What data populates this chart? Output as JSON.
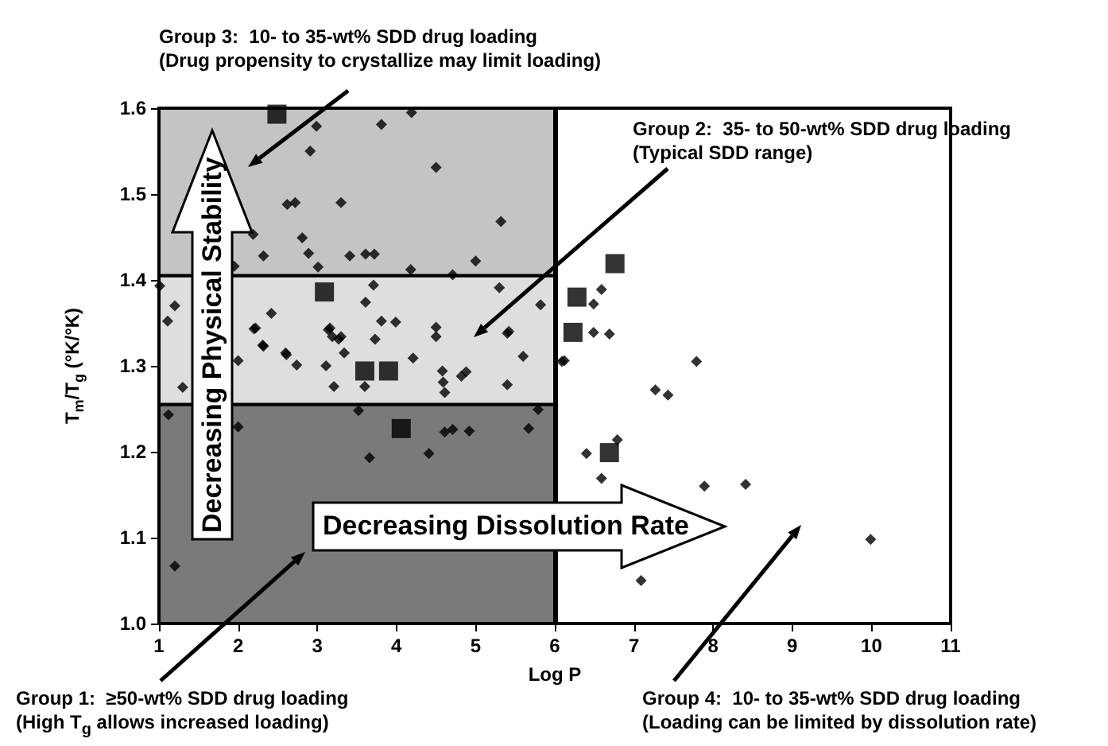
{
  "chart_data": {
    "type": "scatter",
    "xlabel": "Log P",
    "ylabel": "T$_{m}$/T$_{g}$ (°K/°K)",
    "xlim": [
      1,
      11
    ],
    "xticks": [
      1,
      2,
      3,
      4,
      5,
      6,
      7,
      8,
      9,
      10,
      11
    ],
    "ylim": [
      1.0,
      1.6
    ],
    "yticks": [
      {
        "value": 1.0,
        "label": "1.0"
      },
      1.1,
      1.2,
      1.3,
      1.4,
      1.5,
      1.6
    ],
    "grid": false,
    "series": [
      {
        "color": "#000000",
        "marker": "diamond",
        "x": [
          2.99,
          2.91,
          3.81,
          4.19,
          4.5,
          2.62,
          2.72,
          3.3,
          2.19,
          2.81,
          2.32,
          2.89,
          3.01,
          3.41,
          3.61,
          3.72,
          5.32,
          5.0,
          4.18,
          1.95,
          4.71,
          1.2,
          1.11,
          1.01,
          2.42,
          2.22,
          2.32,
          2.6,
          3.16,
          3.19,
          3.3,
          3.71,
          3.61,
          3.81,
          3.99,
          4.5,
          4.5,
          5.3,
          5.42,
          5.82,
          6.12,
          2.0,
          2.2,
          2.31,
          2.61,
          2.74,
          3.11,
          3.14,
          3.27,
          3.34,
          3.21,
          3.73,
          3.6,
          4.21,
          4.58,
          4.59,
          4.61,
          4.88,
          4.82,
          5.4,
          5.4,
          5.6,
          1.3,
          1.12,
          2.0,
          3.52,
          3.66,
          4.41,
          4.61,
          4.71,
          4.92,
          5.67,
          5.79,
          1.2,
          6.59,
          6.49,
          6.49,
          6.69,
          6.09,
          7.79,
          7.27,
          7.43,
          6.79,
          6.4,
          6.59,
          7.89,
          8.41,
          9.99,
          7.09
        ],
        "values": [
          1.579,
          1.55,
          1.581,
          1.595,
          1.531,
          1.488,
          1.49,
          1.49,
          1.453,
          1.449,
          1.428,
          1.431,
          1.415,
          1.428,
          1.43,
          1.43,
          1.468,
          1.422,
          1.412,
          1.416,
          1.406,
          1.37,
          1.352,
          1.393,
          1.361,
          1.344,
          1.323,
          1.315,
          1.344,
          1.334,
          1.334,
          1.394,
          1.374,
          1.352,
          1.351,
          1.345,
          1.334,
          1.391,
          1.34,
          1.371,
          1.306,
          1.306,
          1.343,
          1.324,
          1.313,
          1.301,
          1.3,
          1.342,
          1.331,
          1.315,
          1.276,
          1.331,
          1.276,
          1.309,
          1.294,
          1.281,
          1.269,
          1.293,
          1.288,
          1.338,
          1.278,
          1.311,
          1.275,
          1.243,
          1.229,
          1.248,
          1.193,
          1.198,
          1.223,
          1.226,
          1.224,
          1.227,
          1.249,
          1.067,
          1.389,
          1.372,
          1.339,
          1.337,
          1.305,
          1.305,
          1.272,
          1.266,
          1.214,
          1.198,
          1.169,
          1.16,
          1.162,
          1.098,
          1.05
        ]
      },
      {
        "color": "#000000",
        "marker": "square",
        "x": [
          2.49,
          3.09,
          3.6,
          3.9,
          4.06,
          6.28,
          6.76,
          6.23,
          6.69
        ],
        "values": [
          1.593,
          1.386,
          1.294,
          1.294,
          1.227,
          1.38,
          1.419,
          1.339,
          1.199
        ]
      }
    ],
    "ref_lines": [
      {
        "axis": "x",
        "value": 6,
        "color": "#000000"
      }
    ],
    "bands": [
      {
        "axis": "y",
        "from": 1.0,
        "to": 1.255,
        "color": "#7a7a7a"
      },
      {
        "axis": "y",
        "from": 1.255,
        "to": 1.405,
        "color": "#dedede"
      },
      {
        "axis": "y",
        "from": 1.405,
        "to": 1.6,
        "color": "#c4c4c4"
      }
    ],
    "annotations": [
      "Group 3:  10- to 35-wt% SDD drug loading\n(Drug propensity to crystallize may limit loading)",
      "Group 2:  35- to 50-wt% SDD drug loading\n(Typical SDD range)",
      "Group 1:  ≥50-wt% SDD drug loading\n(High T$_{g}$ allows increased loading)",
      "Group 4:  10- to 35-wt% SDD drug loading\n(Loading can be limited by dissolution rate)",
      "Decreasing Physical Stability",
      "Decreasing Dissolution Rate"
    ]
  }
}
